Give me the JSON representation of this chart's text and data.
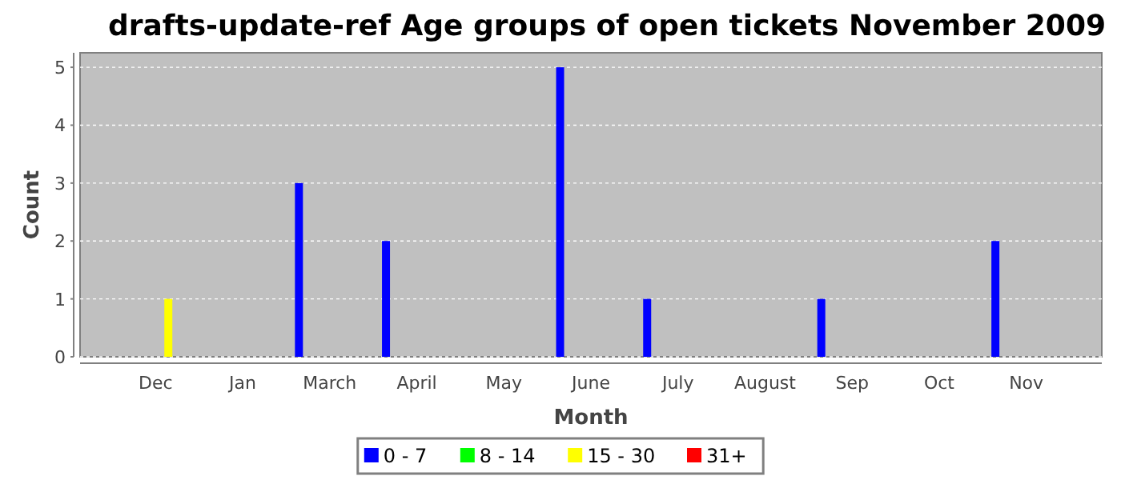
{
  "chart_data": {
    "type": "bar",
    "title": "drafts-update-ref Age groups of open tickets November 2009",
    "xlabel": "Month",
    "ylabel": "Count",
    "categories": [
      "Dec",
      "Jan",
      "March",
      "April",
      "May",
      "June",
      "July",
      "August",
      "Sep",
      "Oct",
      "Nov"
    ],
    "series": [
      {
        "name": "0 - 7",
        "color": "#0000ff",
        "values": [
          0,
          0,
          3,
          2,
          0,
          5,
          1,
          0,
          1,
          0,
          2
        ]
      },
      {
        "name": "8 - 14",
        "color": "#00ff00",
        "values": [
          0,
          0,
          0,
          0,
          0,
          0,
          0,
          0,
          0,
          0,
          0
        ]
      },
      {
        "name": "15 - 30",
        "color": "#ffff00",
        "values": [
          1,
          0,
          0,
          0,
          0,
          0,
          0,
          0,
          0,
          0,
          0
        ]
      },
      {
        "name": "31+",
        "color": "#ff0000",
        "values": [
          0,
          0,
          0,
          0,
          0,
          0,
          0,
          0,
          0,
          0,
          0
        ]
      }
    ],
    "ylim": [
      0,
      5.25
    ],
    "yticks": [
      0,
      1,
      2,
      3,
      4,
      5
    ],
    "grid": "y",
    "legend": "bottom"
  }
}
